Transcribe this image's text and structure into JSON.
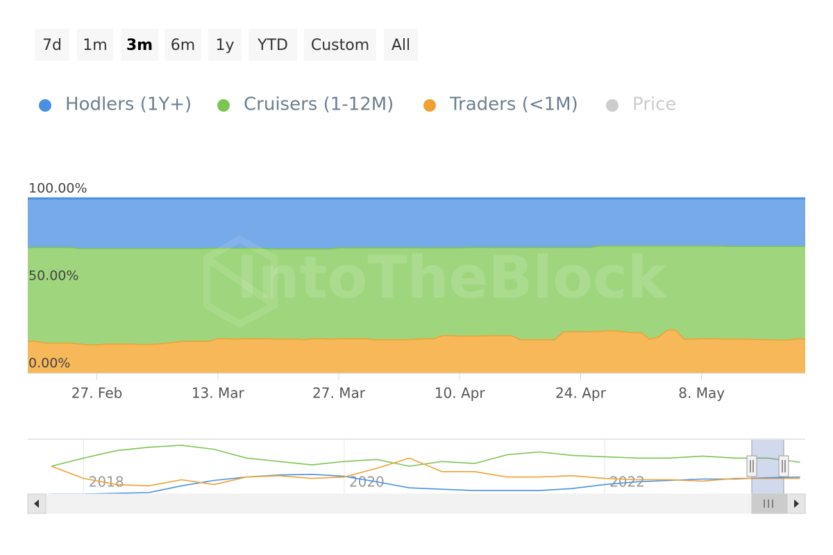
{
  "range_selector": {
    "buttons": [
      "7d",
      "1m",
      "3m",
      "6m",
      "1y",
      "YTD",
      "Custom",
      "All"
    ],
    "selected": "3m"
  },
  "watermark": "IntoTheBlock",
  "chart_data": [
    {
      "type": "area",
      "stacking": "percent",
      "grid": true,
      "categories": [
        null,
        null,
        null,
        null,
        null,
        null,
        null,
        null,
        "27. Feb",
        null,
        null,
        null,
        null,
        null,
        null,
        null,
        null,
        null,
        null,
        null,
        null,
        null,
        "13. Mar",
        null,
        null,
        null,
        null,
        null,
        null,
        null,
        null,
        null,
        null,
        null,
        null,
        null,
        "27. Mar",
        null,
        null,
        null,
        null,
        null,
        null,
        null,
        null,
        null,
        null,
        null,
        null,
        null,
        "10. Apr",
        null,
        null,
        null,
        null,
        null,
        null,
        null,
        null,
        null,
        null,
        null,
        null,
        null,
        "24. Apr",
        null,
        null,
        null,
        null,
        null,
        null,
        null,
        null,
        null,
        null,
        null,
        null,
        null,
        "8. May",
        null,
        null,
        null,
        null,
        null,
        null,
        null,
        null,
        null,
        null,
        null,
        null
      ],
      "ylim": [
        0,
        100
      ],
      "yticks": [
        {
          "value": 0,
          "label": "0.00%"
        },
        {
          "value": 50,
          "label": "50.00%"
        },
        {
          "value": 100,
          "label": "100.00%"
        }
      ],
      "series": [
        {
          "name": "Hodlers (1Y+)",
          "color": "#4a90e2",
          "fill": "#77aae8",
          "values": [
            27.8,
            27.8,
            27.8,
            27.8,
            27.8,
            27.8,
            28.4,
            28.4,
            28.4,
            28.4,
            28.4,
            28.4,
            28.4,
            28.4,
            28.4,
            28.4,
            28.4,
            28.4,
            28.4,
            28.4,
            28.4,
            28.2,
            28.2,
            28.2,
            28.2,
            28.2,
            28.2,
            28.2,
            28.6,
            28.6,
            28.6,
            28.6,
            28.6,
            28.6,
            28.6,
            28.6,
            28,
            28,
            28,
            28,
            28,
            28,
            28,
            28,
            28,
            28,
            28,
            28,
            28,
            28,
            28,
            27.8,
            27.8,
            27.8,
            27.8,
            27.8,
            27.8,
            27.8,
            27.8,
            27.8,
            27.8,
            27.8,
            27.8,
            27.8,
            27.8,
            27.8,
            27,
            27,
            27,
            27,
            27,
            27,
            27,
            27,
            27,
            27,
            27,
            27,
            27,
            27,
            27,
            27.2,
            27.2,
            27.2,
            27.2,
            27.2,
            27.2,
            27.2,
            27.2,
            27.2,
            27.2
          ]
        },
        {
          "name": "Cruisers (1-12M)",
          "color": "#7cc552",
          "fill": "#9fd67d",
          "values": [
            53.7,
            53.7,
            54.7,
            54.7,
            54.7,
            54.7,
            54.6,
            55.1,
            55.1,
            54.6,
            54.6,
            54.6,
            54.6,
            54.8,
            54.8,
            54.6,
            54.1,
            53.6,
            53.1,
            53.1,
            53.1,
            53.3,
            51.8,
            51.8,
            52,
            51.8,
            51.8,
            51.8,
            51.4,
            51.6,
            51.6,
            51.6,
            51.9,
            51.4,
            51.4,
            51.6,
            52,
            52,
            52,
            51.8,
            52.5,
            52.5,
            52.5,
            52.5,
            52.5,
            52.2,
            52,
            52,
            50.2,
            50.2,
            50.5,
            50.7,
            50.7,
            50.5,
            50.4,
            50.4,
            50.4,
            52.7,
            52.7,
            52.7,
            52.7,
            52.7,
            48.2,
            48.2,
            48.2,
            48.2,
            48.8,
            48.5,
            48.5,
            49,
            49.5,
            49.5,
            53.2,
            52,
            48,
            48,
            53.2,
            53.2,
            53,
            53,
            53,
            53,
            53,
            53,
            53.1,
            53.3,
            53.3,
            53.6,
            53.6,
            52.8,
            53
          ]
        },
        {
          "name": "Traders (<1M)",
          "color": "#f0a030",
          "fill": "#f7b85a",
          "values": [
            18.5,
            18.5,
            17.5,
            17.5,
            17.5,
            17.5,
            17,
            16.5,
            16.5,
            17,
            17,
            17,
            17,
            16.8,
            16.8,
            17,
            17.5,
            18,
            18.5,
            18.5,
            18.5,
            18.5,
            20,
            20,
            19.8,
            20,
            20,
            20,
            20,
            19.8,
            19.8,
            19.8,
            19.5,
            20,
            20,
            19.8,
            20,
            20,
            20,
            20.2,
            19.5,
            19.5,
            19.5,
            19.5,
            19.5,
            19.8,
            20,
            20,
            21.8,
            21.8,
            21.5,
            21.5,
            21.5,
            21.7,
            21.8,
            21.8,
            21.8,
            19.5,
            19.5,
            19.5,
            19.5,
            19.5,
            24,
            24,
            24,
            24,
            24.2,
            24.5,
            24.5,
            24,
            23.5,
            23.5,
            19.8,
            21,
            25,
            25,
            19.8,
            19.8,
            20,
            20,
            20,
            19.8,
            19.8,
            19.8,
            19.7,
            19.5,
            19.5,
            19.2,
            19.2,
            20,
            19.8
          ]
        },
        {
          "name": "Price",
          "color": "#cccccc",
          "visible": false,
          "values": [
            null,
            null,
            null,
            null,
            null,
            null,
            null,
            null,
            null,
            null,
            null,
            null,
            null,
            null,
            null,
            null,
            null,
            null,
            null,
            null,
            null,
            null,
            null,
            null,
            null,
            null,
            null,
            null,
            null,
            null,
            null,
            null,
            null,
            null,
            null,
            null,
            null,
            null,
            null,
            null,
            null,
            null,
            null,
            null,
            null,
            null,
            null,
            null,
            null,
            null,
            null,
            null,
            null,
            null,
            null,
            null,
            null,
            null,
            null,
            null,
            null,
            null,
            null,
            null,
            null,
            null,
            null,
            null,
            null,
            null,
            null,
            null,
            null,
            null,
            null,
            null,
            null,
            null,
            null,
            null,
            null,
            null,
            null,
            null,
            null,
            null,
            null,
            null,
            null,
            null,
            null
          ]
        }
      ]
    },
    {
      "type": "line",
      "x": [
        2017.75,
        2018,
        2018.25,
        2018.5,
        2018.75,
        2019,
        2019.25,
        2019.5,
        2019.75,
        2020,
        2020.25,
        2020.5,
        2020.75,
        2021,
        2021.25,
        2021.5,
        2021.75,
        2022,
        2022.25,
        2022.5,
        2022.75,
        2023,
        2023.25,
        2023.5
      ],
      "xlim": [
        2017.57,
        2023.54
      ],
      "xticks": [
        2018,
        2020,
        2022
      ],
      "ylim": [
        0,
        80
      ],
      "series": [
        {
          "name": "Hodlers (1Y+)",
          "color": "#4a90e2",
          "values": [
            0,
            0,
            1,
            2,
            12,
            20,
            25,
            28,
            29,
            26,
            18,
            9,
            7,
            5,
            5,
            5,
            8,
            14,
            18,
            20,
            22,
            22,
            24,
            25
          ]
        },
        {
          "name": "Cruisers (1-12M)",
          "color": "#7cc552",
          "values": [
            41,
            53,
            64,
            69,
            72,
            66,
            53,
            48,
            43,
            48,
            51,
            41,
            48,
            45,
            58,
            62,
            57,
            55,
            53,
            53,
            56,
            53,
            53,
            47
          ]
        },
        {
          "name": "Traders (<1M)",
          "color": "#f0a030",
          "values": [
            41,
            23,
            14,
            12,
            21,
            14,
            25,
            27,
            23,
            25,
            38,
            53,
            33,
            33,
            25,
            25,
            27,
            23,
            21,
            21,
            19,
            23,
            23,
            23
          ]
        }
      ]
    }
  ]
}
